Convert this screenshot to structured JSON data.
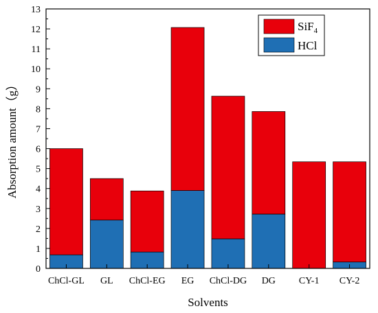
{
  "chart_data": {
    "type": "bar",
    "stacked": true,
    "xlabel": "Solvents",
    "ylabel": "Absorption amount（g）",
    "ylim": [
      0,
      13
    ],
    "yticks": [
      0,
      1,
      2,
      3,
      4,
      5,
      6,
      7,
      8,
      9,
      10,
      11,
      12,
      13
    ],
    "categories": [
      "ChCl-GL",
      "GL",
      "ChCl-EG",
      "EG",
      "ChCl-DG",
      "DG",
      "CY-1",
      "CY-2"
    ],
    "series": [
      {
        "name": "HCl",
        "color": "#1f6fb4",
        "values": [
          0.68,
          2.42,
          0.82,
          3.9,
          1.48,
          2.72,
          0.0,
          0.32
        ]
      },
      {
        "name": "SiF",
        "name_subscript": "4",
        "color": "#e8000b",
        "values": [
          5.32,
          2.08,
          3.06,
          8.17,
          7.15,
          5.14,
          5.34,
          5.02
        ]
      }
    ],
    "legend": {
      "placement": "top-right",
      "order": [
        "SiF4",
        "HCl"
      ]
    },
    "grid": false
  }
}
